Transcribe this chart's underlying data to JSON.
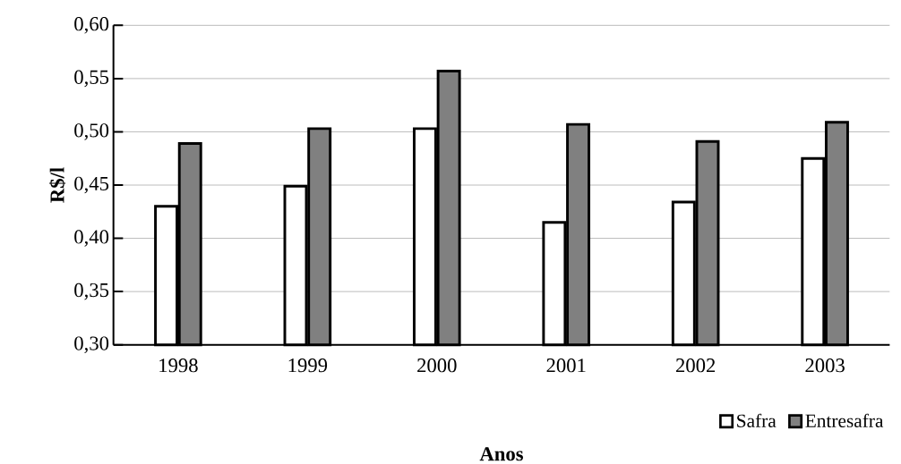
{
  "chart_data": {
    "type": "bar",
    "xlabel": "Anos",
    "ylabel": "R$/l",
    "categories": [
      "1998",
      "1999",
      "2000",
      "2001",
      "2002",
      "2003"
    ],
    "series": [
      {
        "name": "Safra",
        "color": "#ffffff",
        "values": [
          0.43,
          0.449,
          0.503,
          0.415,
          0.434,
          0.475
        ]
      },
      {
        "name": "Entresafra",
        "color": "#808080",
        "values": [
          0.489,
          0.503,
          0.557,
          0.507,
          0.491,
          0.509
        ]
      }
    ],
    "ylim": [
      0.3,
      0.6
    ],
    "yticks": [
      {
        "value": 0.3,
        "label": "0,30"
      },
      {
        "value": 0.35,
        "label": "0,35"
      },
      {
        "value": 0.4,
        "label": "0,40"
      },
      {
        "value": 0.45,
        "label": "0,45"
      },
      {
        "value": 0.5,
        "label": "0,50"
      },
      {
        "value": 0.55,
        "label": "0,55"
      },
      {
        "value": 0.6,
        "label": "0,60"
      }
    ],
    "grid": "y",
    "legend": "bottom right"
  }
}
